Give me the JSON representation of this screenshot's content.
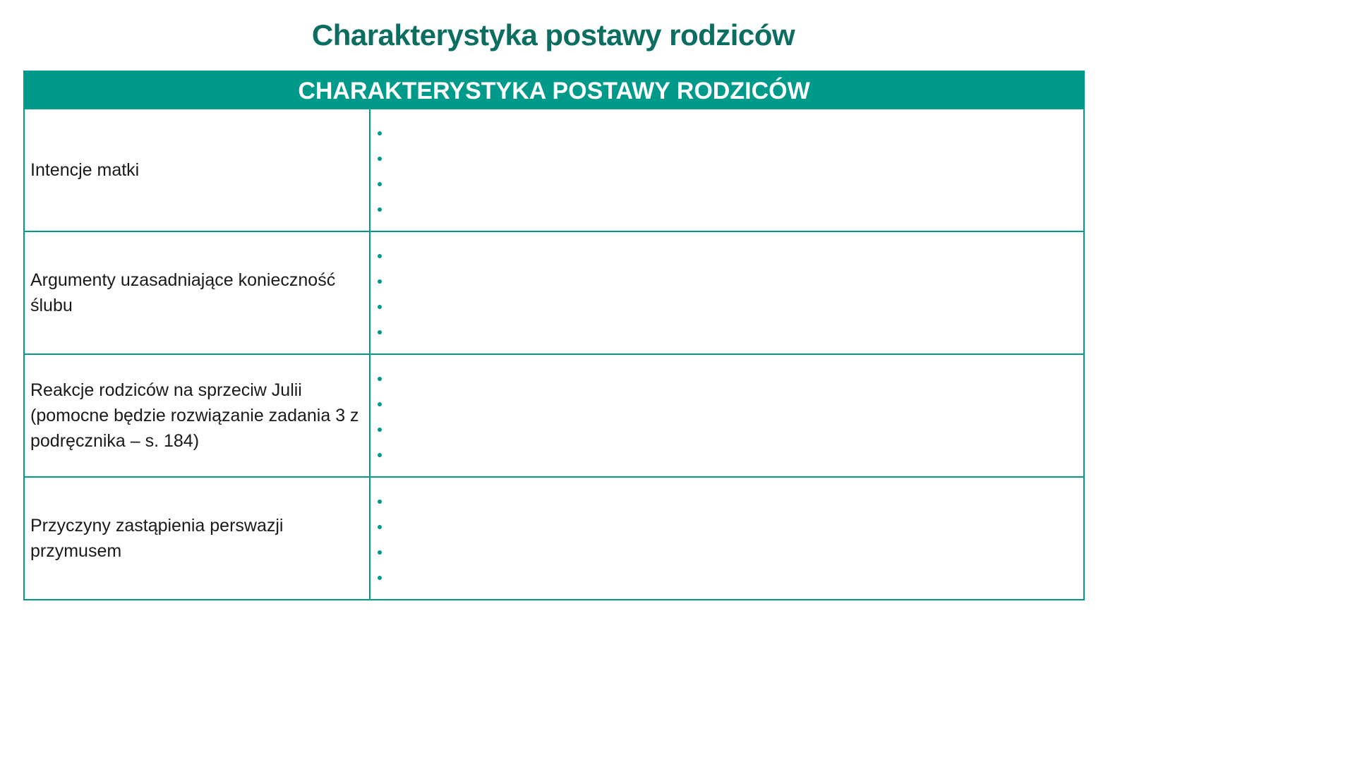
{
  "title": "Charakterystyka postawy rodziców",
  "table": {
    "header": "CHARAKTERYSTYKA POSTAWY RODZICÓW",
    "rows": [
      {
        "label": "Intencje matki"
      },
      {
        "label": "Argumenty uzasadniające konieczność ślubu"
      },
      {
        "label": "Reakcje rodziców na sprzeciw Julii (pomocne będzie rozwiązanie zadania 3 z podręcznika – s. 184)"
      },
      {
        "label": "Przyczyny zastąpienia perswazji przymusem"
      }
    ],
    "bullets_per_row": 4,
    "accent_color": "#009a8a",
    "title_color": "#0b6e60"
  }
}
